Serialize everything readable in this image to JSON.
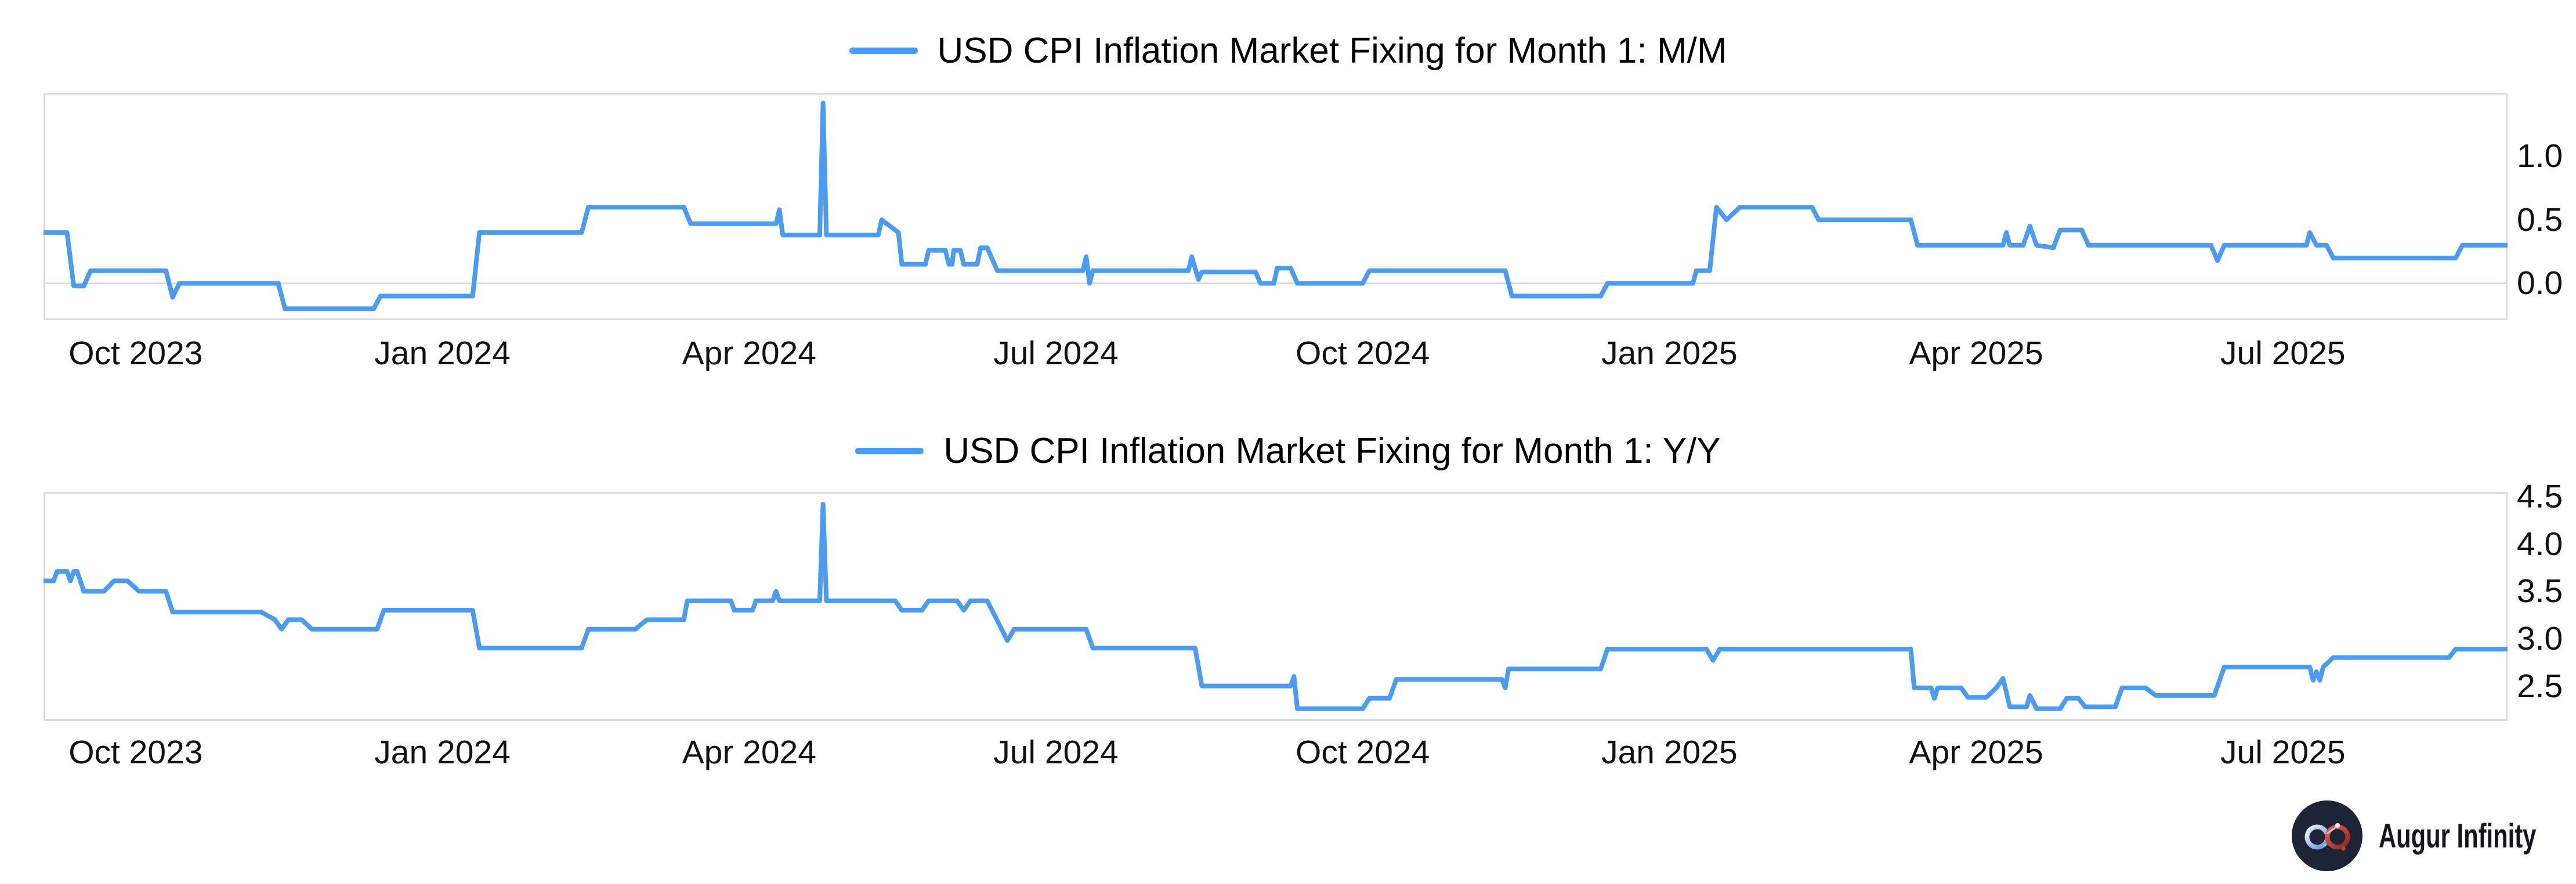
{
  "branding": {
    "name": "Augur Infinity",
    "icon": "infinity-icon",
    "icon_bg_color": "#1d2435",
    "icon_left_loop_colors": [
      "#f2f6fb",
      "#5d8fd6"
    ],
    "icon_right_loop_colors": [
      "#e8604e",
      "#93241f"
    ],
    "text_color": "#15161b"
  },
  "colors": {
    "line": "#4b9cf1",
    "grid": "#d9d9d9",
    "frame": "#d9d9d9",
    "tick_text": "#111111",
    "title_text": "#000000",
    "background": "#ffffff"
  },
  "chart_data": [
    {
      "type": "line",
      "title": "USD CPI Inflation Market Fixing for Month 1: M/M",
      "legend_position": "top-center",
      "grid": "zero-line-only",
      "baseline": 0.0,
      "x_range": [
        "2023-09-04",
        "2025-09-07"
      ],
      "y_range": [
        -0.29,
        1.5
      ],
      "x_ticks": [
        {
          "label": "Oct 2023",
          "date": "2023-10-01"
        },
        {
          "label": "Jan 2024",
          "date": "2024-01-01"
        },
        {
          "label": "Apr 2024",
          "date": "2024-04-01"
        },
        {
          "label": "Jul 2024",
          "date": "2024-07-01"
        },
        {
          "label": "Oct 2024",
          "date": "2024-10-01"
        },
        {
          "label": "Jan 2025",
          "date": "2025-01-01"
        },
        {
          "label": "Apr 2025",
          "date": "2025-04-01"
        },
        {
          "label": "Jul 2025",
          "date": "2025-07-01"
        }
      ],
      "y_ticks": [
        {
          "label": "0.0",
          "value": 0.0
        },
        {
          "label": "0.5",
          "value": 0.5
        },
        {
          "label": "1.0",
          "value": 1.0
        }
      ],
      "series": [
        {
          "name": "USD CPI Inflation Market Fixing for Month 1: M/M",
          "color": "#4b9cf1",
          "points": [
            [
              "2023-09-04",
              0.4
            ],
            [
              "2023-09-11",
              0.4
            ],
            [
              "2023-09-13",
              -0.02
            ],
            [
              "2023-09-16",
              -0.02
            ],
            [
              "2023-09-18",
              0.1
            ],
            [
              "2023-10-10",
              0.1
            ],
            [
              "2023-10-12",
              -0.11
            ],
            [
              "2023-10-14",
              0.0
            ],
            [
              "2023-11-13",
              0.0
            ],
            [
              "2023-11-15",
              -0.2
            ],
            [
              "2023-12-11",
              -0.2
            ],
            [
              "2023-12-13",
              -0.1
            ],
            [
              "2024-01-10",
              -0.1
            ],
            [
              "2024-01-12",
              0.4
            ],
            [
              "2024-02-12",
              0.4
            ],
            [
              "2024-02-14",
              0.6
            ],
            [
              "2024-03-12",
              0.6
            ],
            [
              "2024-03-14",
              0.47
            ],
            [
              "2024-04-09",
              0.47
            ],
            [
              "2024-04-10",
              0.58
            ],
            [
              "2024-04-11",
              0.38
            ],
            [
              "2024-04-22",
              0.38
            ],
            [
              "2024-04-23",
              1.42
            ],
            [
              "2024-04-24",
              0.38
            ],
            [
              "2024-05-09",
              0.38
            ],
            [
              "2024-05-10",
              0.5
            ],
            [
              "2024-05-13",
              0.44
            ],
            [
              "2024-05-15",
              0.4
            ],
            [
              "2024-05-16",
              0.15
            ],
            [
              "2024-05-23",
              0.15
            ],
            [
              "2024-05-24",
              0.26
            ],
            [
              "2024-05-29",
              0.26
            ],
            [
              "2024-05-30",
              0.15
            ],
            [
              "2024-05-31",
              0.15
            ],
            [
              "2024-06-01",
              0.26
            ],
            [
              "2024-06-03",
              0.26
            ],
            [
              "2024-06-04",
              0.15
            ],
            [
              "2024-06-08",
              0.15
            ],
            [
              "2024-06-09",
              0.28
            ],
            [
              "2024-06-11",
              0.28
            ],
            [
              "2024-06-14",
              0.1
            ],
            [
              "2024-07-09",
              0.1
            ],
            [
              "2024-07-10",
              0.21
            ],
            [
              "2024-07-11",
              0.0
            ],
            [
              "2024-07-12",
              0.1
            ],
            [
              "2024-08-10",
              0.1
            ],
            [
              "2024-08-11",
              0.21
            ],
            [
              "2024-08-13",
              0.03
            ],
            [
              "2024-08-14",
              0.09
            ],
            [
              "2024-08-30",
              0.09
            ],
            [
              "2024-09-01",
              0.0
            ],
            [
              "2024-09-05",
              0.0
            ],
            [
              "2024-09-06",
              0.12
            ],
            [
              "2024-09-10",
              0.12
            ],
            [
              "2024-09-12",
              0.0
            ],
            [
              "2024-10-01",
              0.0
            ],
            [
              "2024-10-03",
              0.1
            ],
            [
              "2024-11-13",
              0.1
            ],
            [
              "2024-11-15",
              -0.1
            ],
            [
              "2024-12-11",
              -0.1
            ],
            [
              "2024-12-13",
              0.0
            ],
            [
              "2025-01-08",
              0.0
            ],
            [
              "2025-01-09",
              0.1
            ],
            [
              "2025-01-13",
              0.1
            ],
            [
              "2025-01-15",
              0.6
            ],
            [
              "2025-01-18",
              0.5
            ],
            [
              "2025-01-22",
              0.6
            ],
            [
              "2025-02-13",
              0.6
            ],
            [
              "2025-02-15",
              0.5
            ],
            [
              "2025-03-12",
              0.5
            ],
            [
              "2025-03-14",
              0.3
            ],
            [
              "2025-04-09",
              0.3
            ],
            [
              "2025-04-10",
              0.4
            ],
            [
              "2025-04-11",
              0.3
            ],
            [
              "2025-04-15",
              0.3
            ],
            [
              "2025-04-17",
              0.45
            ],
            [
              "2025-04-19",
              0.3
            ],
            [
              "2025-04-24",
              0.28
            ],
            [
              "2025-04-26",
              0.42
            ],
            [
              "2025-05-02",
              0.42
            ],
            [
              "2025-05-04",
              0.3
            ],
            [
              "2025-06-10",
              0.3
            ],
            [
              "2025-06-12",
              0.18
            ],
            [
              "2025-06-14",
              0.3
            ],
            [
              "2025-07-08",
              0.3
            ],
            [
              "2025-07-09",
              0.4
            ],
            [
              "2025-07-11",
              0.3
            ],
            [
              "2025-07-14",
              0.3
            ],
            [
              "2025-07-16",
              0.2
            ],
            [
              "2025-08-22",
              0.2
            ],
            [
              "2025-08-24",
              0.3
            ],
            [
              "2025-09-07",
              0.3
            ]
          ]
        }
      ]
    },
    {
      "type": "line",
      "title": "USD CPI Inflation Market Fixing for Month 1: Y/Y",
      "legend_position": "top-center",
      "grid": "none",
      "baseline": null,
      "x_range": [
        "2023-09-04",
        "2025-09-07"
      ],
      "y_range": [
        2.13,
        4.55
      ],
      "x_ticks": [
        {
          "label": "Oct 2023",
          "date": "2023-10-01"
        },
        {
          "label": "Jan 2024",
          "date": "2024-01-01"
        },
        {
          "label": "Apr 2024",
          "date": "2024-04-01"
        },
        {
          "label": "Jul 2024",
          "date": "2024-07-01"
        },
        {
          "label": "Oct 2024",
          "date": "2024-10-01"
        },
        {
          "label": "Jan 2025",
          "date": "2025-01-01"
        },
        {
          "label": "Apr 2025",
          "date": "2025-04-01"
        },
        {
          "label": "Jul 2025",
          "date": "2025-07-01"
        }
      ],
      "y_ticks": [
        {
          "label": "2.5",
          "value": 2.5
        },
        {
          "label": "3.0",
          "value": 3.0
        },
        {
          "label": "3.5",
          "value": 3.5
        },
        {
          "label": "4.0",
          "value": 4.0
        },
        {
          "label": "4.5",
          "value": 4.5
        }
      ],
      "series": [
        {
          "name": "USD CPI Inflation Market Fixing for Month 1: Y/Y",
          "color": "#4b9cf1",
          "points": [
            [
              "2023-09-04",
              3.61
            ],
            [
              "2023-09-07",
              3.61
            ],
            [
              "2023-09-08",
              3.71
            ],
            [
              "2023-09-11",
              3.71
            ],
            [
              "2023-09-12",
              3.61
            ],
            [
              "2023-09-13",
              3.71
            ],
            [
              "2023-09-14",
              3.71
            ],
            [
              "2023-09-16",
              3.5
            ],
            [
              "2023-09-22",
              3.5
            ],
            [
              "2023-09-25",
              3.61
            ],
            [
              "2023-09-29",
              3.61
            ],
            [
              "2023-10-02",
              3.5
            ],
            [
              "2023-10-10",
              3.5
            ],
            [
              "2023-10-12",
              3.28
            ],
            [
              "2023-11-08",
              3.28
            ],
            [
              "2023-11-12",
              3.2
            ],
            [
              "2023-11-14",
              3.1
            ],
            [
              "2023-11-16",
              3.2
            ],
            [
              "2023-11-20",
              3.2
            ],
            [
              "2023-11-23",
              3.1
            ],
            [
              "2023-12-12",
              3.1
            ],
            [
              "2023-12-14",
              3.3
            ],
            [
              "2024-01-10",
              3.3
            ],
            [
              "2024-01-12",
              2.9
            ],
            [
              "2024-02-12",
              2.9
            ],
            [
              "2024-02-14",
              3.1
            ],
            [
              "2024-02-28",
              3.1
            ],
            [
              "2024-03-01",
              3.2
            ],
            [
              "2024-03-12",
              3.2
            ],
            [
              "2024-03-13",
              3.4
            ],
            [
              "2024-03-26",
              3.4
            ],
            [
              "2024-03-27",
              3.3
            ],
            [
              "2024-04-02",
              3.3
            ],
            [
              "2024-04-03",
              3.4
            ],
            [
              "2024-04-08",
              3.4
            ],
            [
              "2024-04-09",
              3.5
            ],
            [
              "2024-04-10",
              3.4
            ],
            [
              "2024-04-22",
              3.4
            ],
            [
              "2024-04-23",
              4.42
            ],
            [
              "2024-04-24",
              3.4
            ],
            [
              "2024-05-14",
              3.4
            ],
            [
              "2024-05-16",
              3.3
            ],
            [
              "2024-05-22",
              3.3
            ],
            [
              "2024-05-24",
              3.4
            ],
            [
              "2024-06-02",
              3.4
            ],
            [
              "2024-06-04",
              3.3
            ],
            [
              "2024-06-06",
              3.4
            ],
            [
              "2024-06-11",
              3.4
            ],
            [
              "2024-06-17",
              2.98
            ],
            [
              "2024-06-19",
              3.1
            ],
            [
              "2024-07-10",
              3.1
            ],
            [
              "2024-07-12",
              2.9
            ],
            [
              "2024-08-12",
              2.9
            ],
            [
              "2024-08-14",
              2.5
            ],
            [
              "2024-09-10",
              2.5
            ],
            [
              "2024-09-11",
              2.6
            ],
            [
              "2024-09-12",
              2.26
            ],
            [
              "2024-10-01",
              2.26
            ],
            [
              "2024-10-03",
              2.37
            ],
            [
              "2024-10-09",
              2.37
            ],
            [
              "2024-10-11",
              2.57
            ],
            [
              "2024-11-12",
              2.57
            ],
            [
              "2024-11-13",
              2.48
            ],
            [
              "2024-11-14",
              2.68
            ],
            [
              "2024-12-11",
              2.68
            ],
            [
              "2024-12-13",
              2.89
            ],
            [
              "2025-01-12",
              2.89
            ],
            [
              "2025-01-14",
              2.77
            ],
            [
              "2025-01-16",
              2.89
            ],
            [
              "2025-03-12",
              2.89
            ],
            [
              "2025-03-13",
              2.48
            ],
            [
              "2025-03-18",
              2.48
            ],
            [
              "2025-03-19",
              2.37
            ],
            [
              "2025-03-20",
              2.48
            ],
            [
              "2025-03-27",
              2.48
            ],
            [
              "2025-03-29",
              2.38
            ],
            [
              "2025-04-04",
              2.38
            ],
            [
              "2025-04-07",
              2.48
            ],
            [
              "2025-04-09",
              2.58
            ],
            [
              "2025-04-11",
              2.28
            ],
            [
              "2025-04-16",
              2.28
            ],
            [
              "2025-04-17",
              2.4
            ],
            [
              "2025-04-19",
              2.26
            ],
            [
              "2025-04-26",
              2.26
            ],
            [
              "2025-04-28",
              2.37
            ],
            [
              "2025-05-01",
              2.37
            ],
            [
              "2025-05-03",
              2.28
            ],
            [
              "2025-05-12",
              2.28
            ],
            [
              "2025-05-14",
              2.48
            ],
            [
              "2025-05-21",
              2.48
            ],
            [
              "2025-05-24",
              2.4
            ],
            [
              "2025-06-11",
              2.4
            ],
            [
              "2025-06-14",
              2.7
            ],
            [
              "2025-07-09",
              2.7
            ],
            [
              "2025-07-10",
              2.56
            ],
            [
              "2025-07-11",
              2.65
            ],
            [
              "2025-07-12",
              2.56
            ],
            [
              "2025-07-13",
              2.7
            ],
            [
              "2025-07-16",
              2.8
            ],
            [
              "2025-08-20",
              2.8
            ],
            [
              "2025-08-22",
              2.89
            ],
            [
              "2025-09-07",
              2.89
            ]
          ]
        }
      ]
    }
  ]
}
